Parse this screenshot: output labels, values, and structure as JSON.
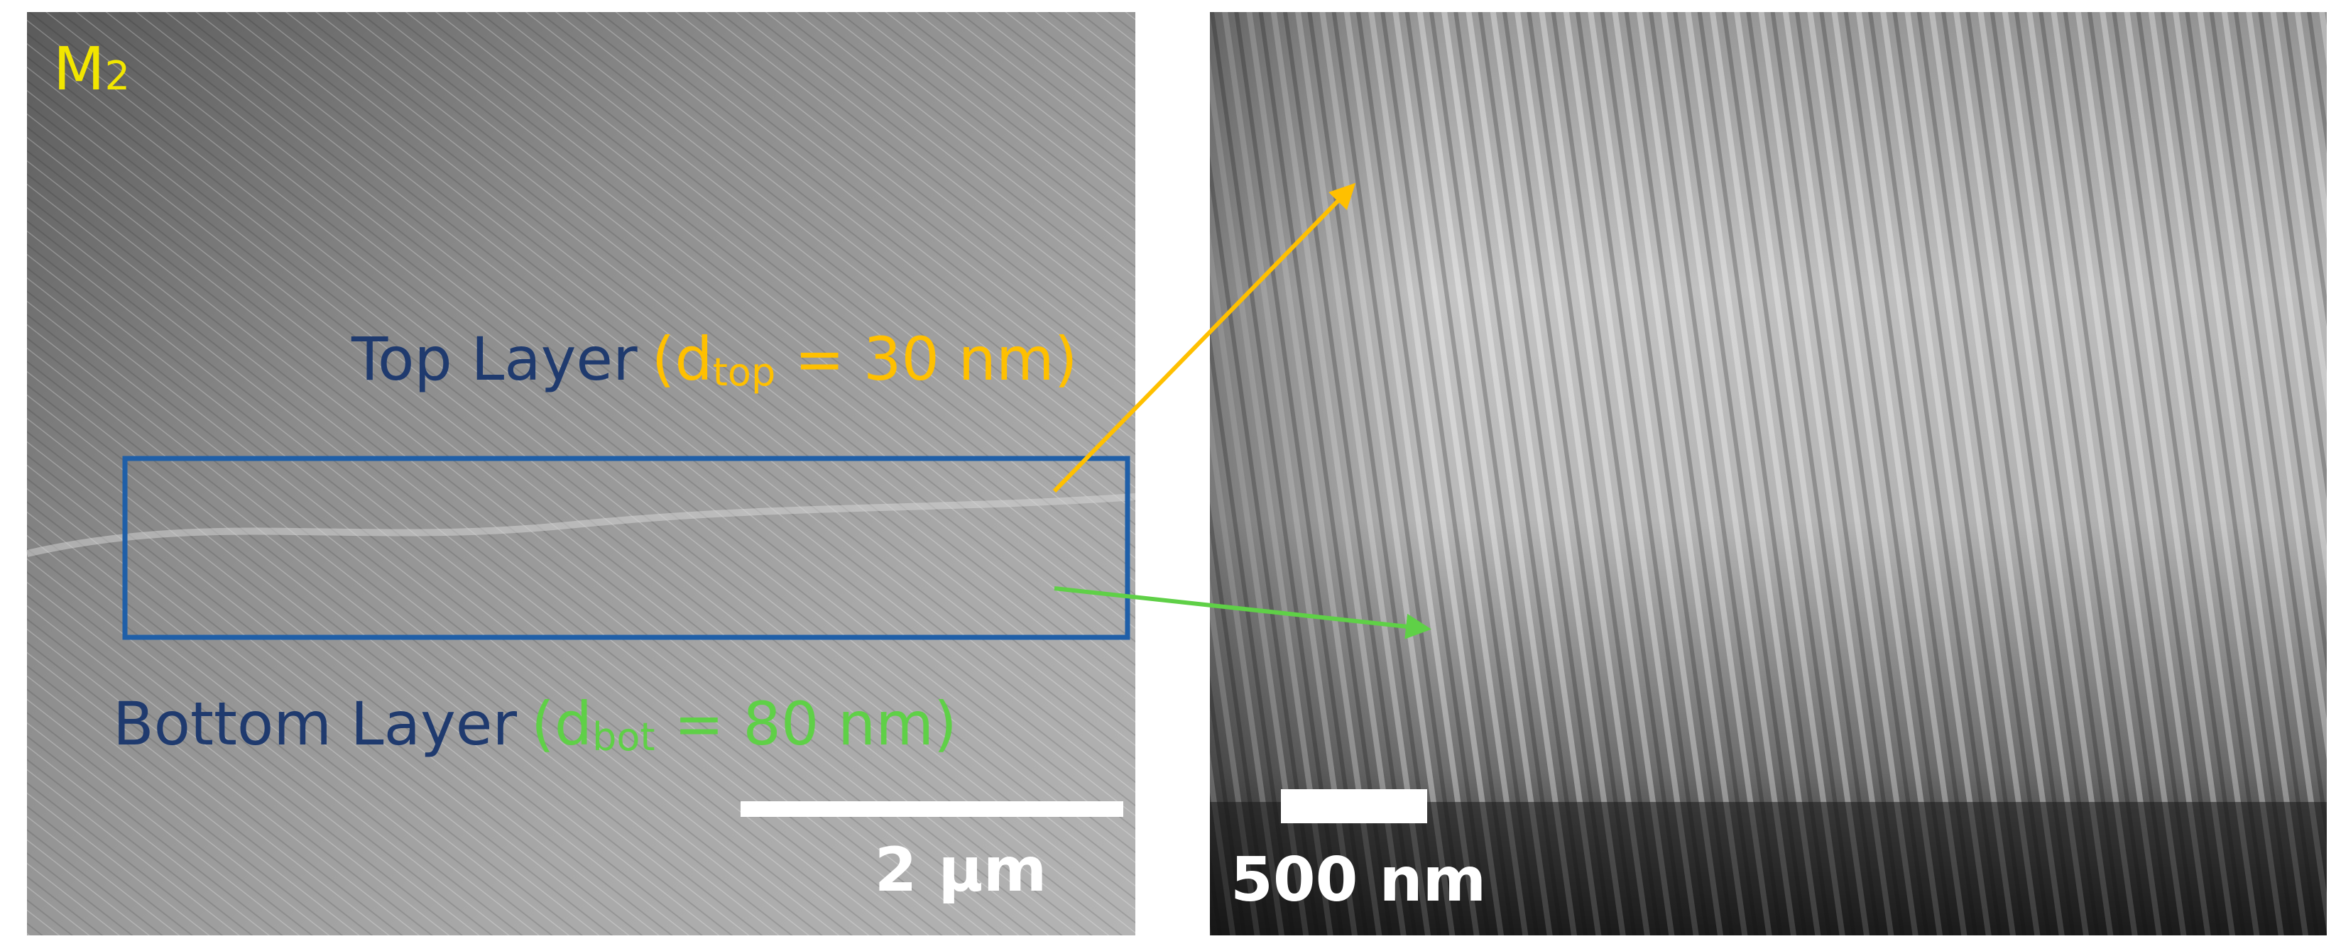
{
  "left_panel": {
    "sample_label": {
      "main": "M",
      "sub": "2"
    },
    "top_layer": {
      "name": "Top Layer",
      "open": "(d",
      "sub": "top",
      "rest": " = 30 nm)"
    },
    "bottom_layer": {
      "name": "Bottom Layer",
      "open": "(d",
      "sub": "bot",
      "rest": " = 80 nm)"
    },
    "scale_bar": "2 µm"
  },
  "right_panel": {
    "scale_bar": "500 nm"
  }
}
